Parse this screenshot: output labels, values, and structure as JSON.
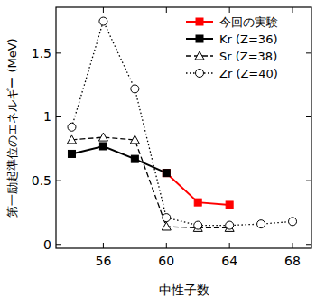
{
  "chart_data": {
    "type": "line",
    "x_label": "中性子数",
    "y_label": "第一励起準位のエネルギー (MeV)",
    "xlim": [
      53,
      69.2
    ],
    "ylim": [
      -0.03,
      1.86
    ],
    "xticks": [
      56,
      60,
      64,
      68
    ],
    "yticks": [
      0,
      0.5,
      1,
      1.5
    ],
    "legend": "upper right",
    "series": [
      {
        "name": "今回の実験",
        "color": "#ff0000",
        "marker": "square",
        "line_style": "solid",
        "x": [
          60,
          62,
          64
        ],
        "values": [
          0.56,
          0.33,
          0.31
        ]
      },
      {
        "name": "Kr (Z=36)",
        "color": "#000000",
        "marker": "square",
        "line_style": "solid",
        "x": [
          54,
          56,
          58,
          60
        ],
        "values": [
          0.71,
          0.77,
          0.67,
          0.56
        ]
      },
      {
        "name": "Sr (Z=38)",
        "color": "#000000",
        "marker": "triangle",
        "line_style": "dashed",
        "x": [
          54,
          56,
          58,
          60,
          62,
          64
        ],
        "values": [
          0.82,
          0.84,
          0.82,
          0.14,
          0.13,
          0.13
        ]
      },
      {
        "name": "Zr (Z=40)",
        "color": "#000000",
        "marker": "circle",
        "line_style": "dotted",
        "x": [
          54,
          56,
          58,
          60,
          62,
          64,
          66,
          68
        ],
        "values": [
          0.92,
          1.75,
          1.22,
          0.21,
          0.15,
          0.15,
          0.16,
          0.18
        ]
      }
    ]
  }
}
